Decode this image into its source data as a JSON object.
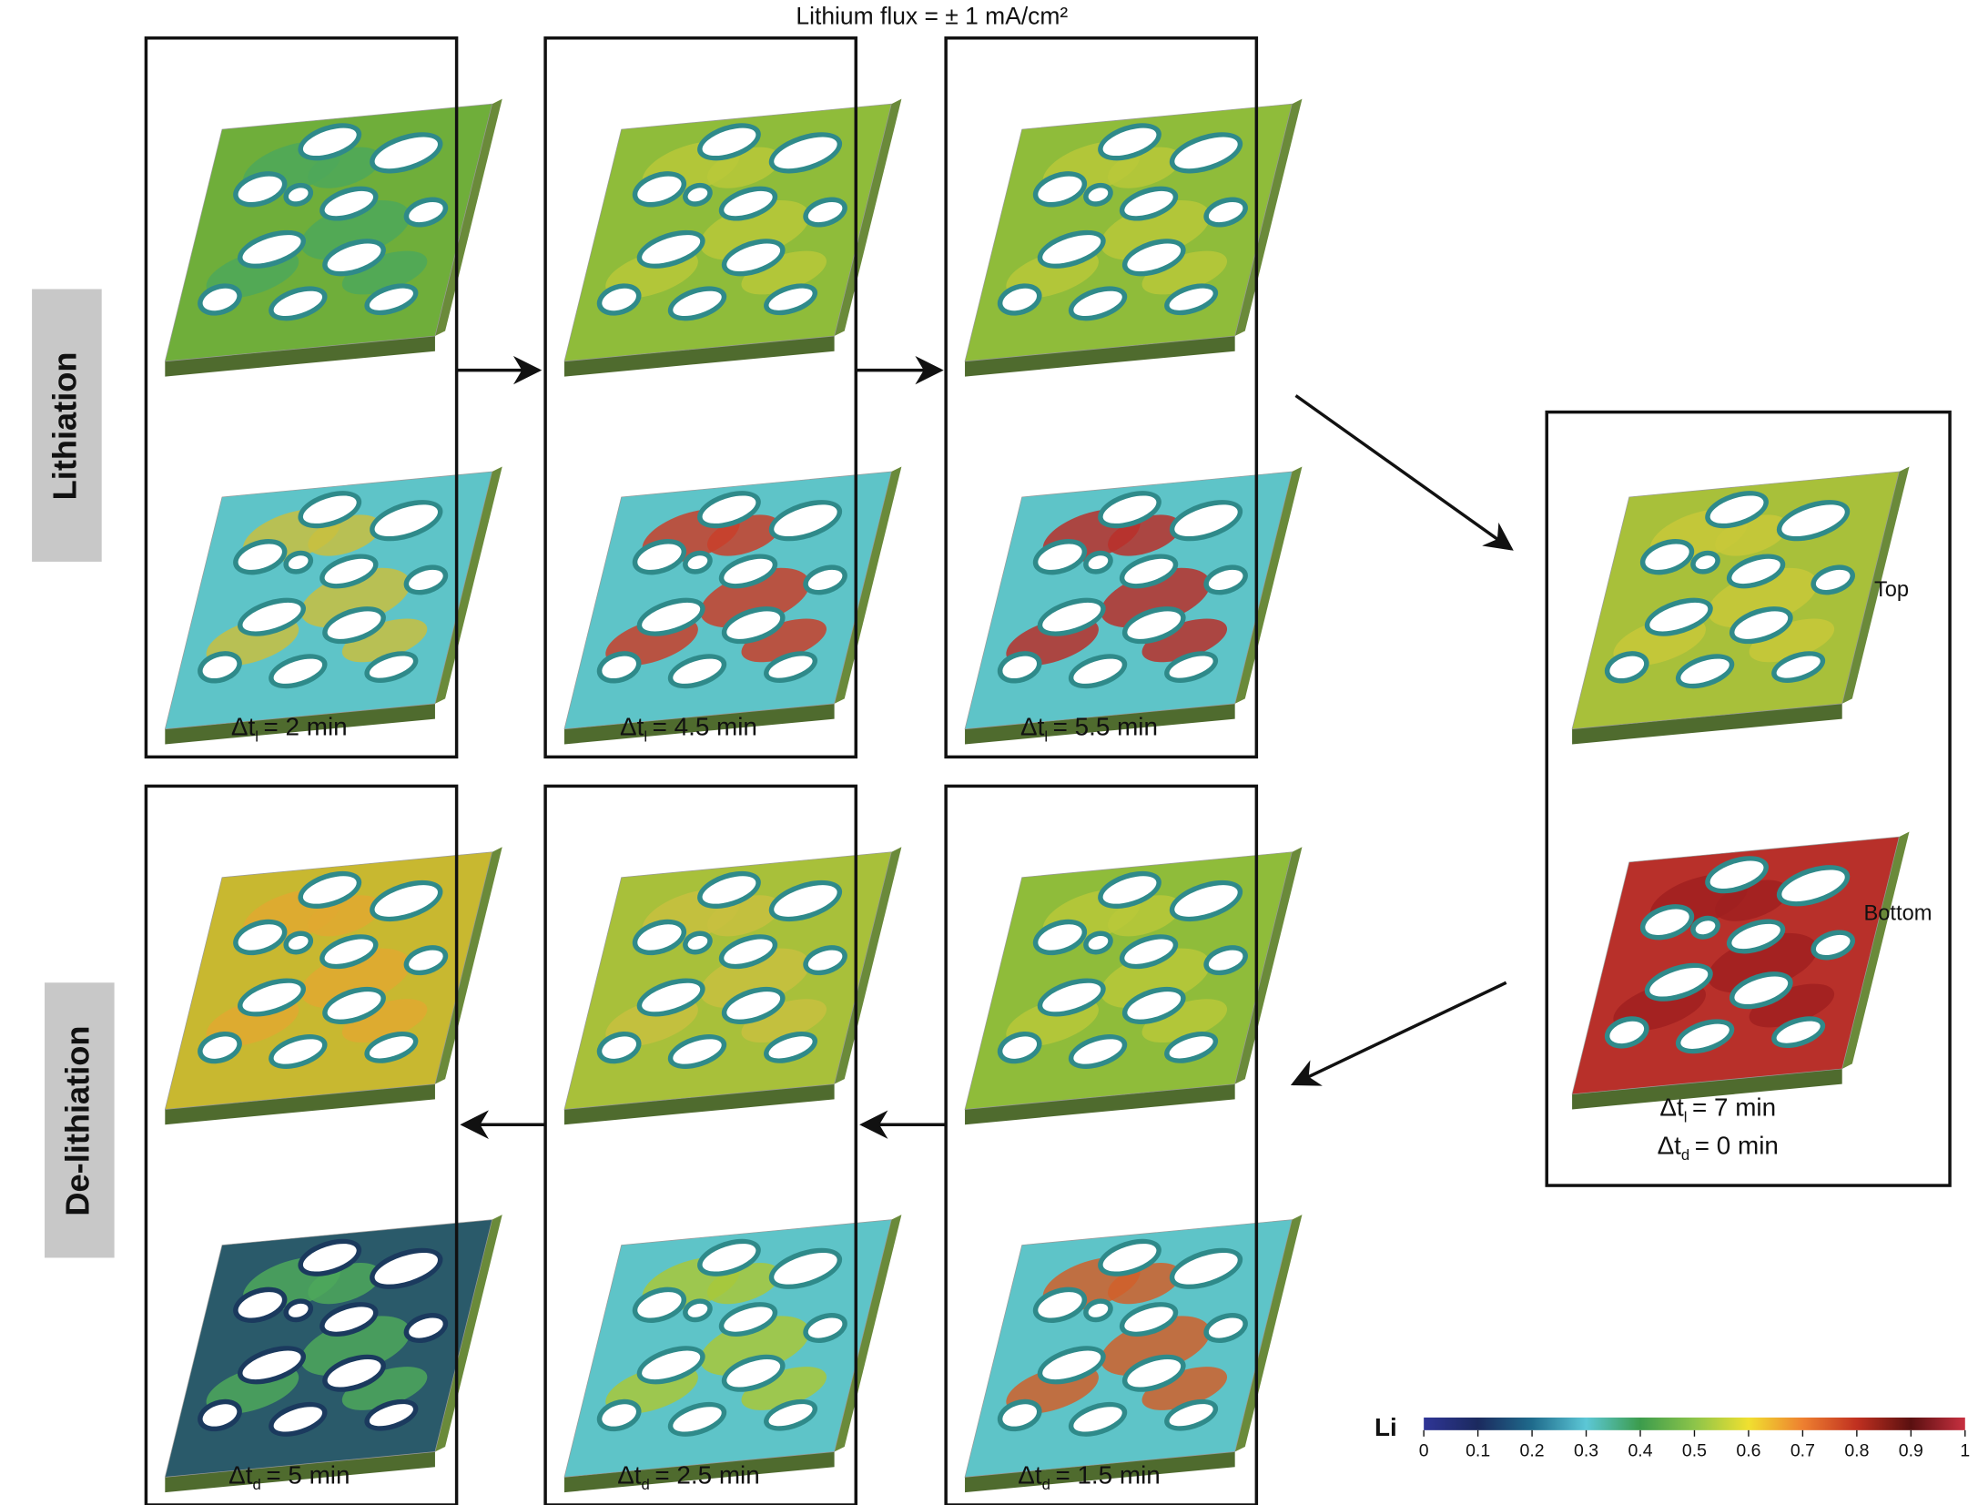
{
  "title": "Lithium flux = ± 1 mA/cm²",
  "row_labels": [
    "Lithiation",
    "De-lithiation"
  ],
  "panels": [
    {
      "symbol": "Δt",
      "subscript": "l",
      "text": "= 2 min"
    },
    {
      "symbol": "Δt",
      "subscript": "l",
      "text": "= 4.5 min"
    },
    {
      "symbol": "Δt",
      "subscript": "l",
      "text": "= 5.5 min"
    },
    {
      "symbol": "Δt",
      "subscript": "d",
      "text": "= 5 min"
    },
    {
      "symbol": "Δt",
      "subscript": "d",
      "text": "= 2.5 min"
    },
    {
      "symbol": "Δt",
      "subscript": "d",
      "text": "= 1.5 min"
    }
  ],
  "final_panel": {
    "lines": [
      {
        "symbol": "Δt",
        "subscript": "l",
        "text": "= 7 min"
      },
      {
        "symbol": "Δt",
        "subscript": "d",
        "text": "= 0 min"
      }
    ],
    "top_label": "Top",
    "bottom_label": "Bottom"
  },
  "colorbar": {
    "label": "Li",
    "range": [
      0,
      1
    ],
    "ticks": [
      0,
      0.1,
      0.2,
      0.3,
      0.4,
      0.5,
      0.6,
      0.7,
      0.8,
      0.9,
      1
    ]
  }
}
